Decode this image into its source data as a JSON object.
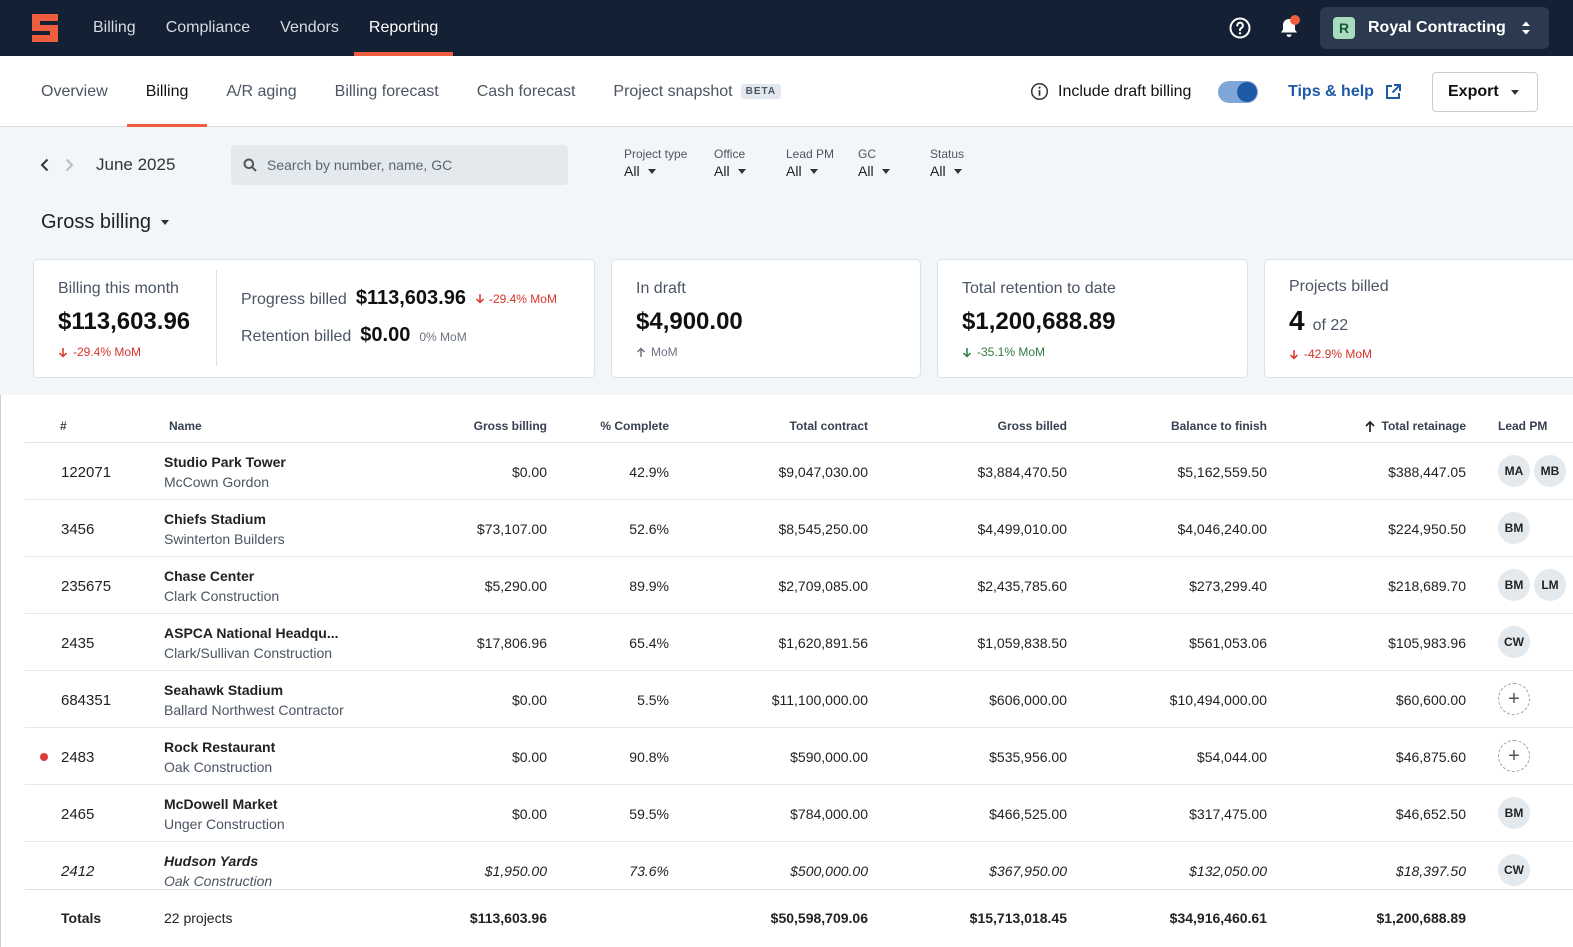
{
  "topnav": {
    "items": [
      "Billing",
      "Compliance",
      "Vendors",
      "Reporting"
    ],
    "active_index": 3,
    "company_initial": "R",
    "company_name": "Royal Contracting",
    "notification_dot": true
  },
  "subnav": {
    "tabs": [
      "Overview",
      "Billing",
      "A/R aging",
      "Billing forecast",
      "Cash forecast",
      "Project snapshot"
    ],
    "active_index": 1,
    "beta_badge": "BETA",
    "draft_toggle_label": "Include draft billing",
    "draft_toggle_on": true,
    "tips_label": "Tips & help",
    "export_label": "Export"
  },
  "filters": {
    "month": "June 2025",
    "search_placeholder": "Search by number, name, GC",
    "items": [
      {
        "label": "Project type",
        "value": "All"
      },
      {
        "label": "Office",
        "value": "All"
      },
      {
        "label": "Lead PM",
        "value": "All"
      },
      {
        "label": "GC",
        "value": "All"
      },
      {
        "label": "Status",
        "value": "All"
      }
    ],
    "metric": "Gross billing"
  },
  "cards": {
    "billing_month": {
      "label": "Billing this month",
      "value": "$113,603.96",
      "delta": "-29.4% MoM",
      "progress_label": "Progress billed",
      "progress_value": "$113,603.96",
      "progress_delta": "-29.4% MoM",
      "retention_label": "Retention billed",
      "retention_value": "$0.00",
      "retention_delta": "0% MoM"
    },
    "in_draft": {
      "label": "In draft",
      "value": "$4,900.00",
      "delta": "MoM"
    },
    "retention": {
      "label": "Total retention to date",
      "value": "$1,200,688.89",
      "delta": "-35.1% MoM"
    },
    "projects": {
      "label": "Projects billed",
      "count": "4",
      "of": "of 22",
      "delta": "-42.9% MoM"
    }
  },
  "table": {
    "headers": {
      "num": "#",
      "name": "Name",
      "gross_billing": "Gross billing",
      "pct_complete": "% Complete",
      "total_contract": "Total contract",
      "gross_billed": "Gross billed",
      "balance": "Balance to finish",
      "retainage": "Total retainage",
      "lead_pm": "Lead PM"
    },
    "sort_column": "Total retainage",
    "rows": [
      {
        "num": "122071",
        "name": "Studio Park Tower",
        "gc": "McCown Gordon",
        "gross_billing": "$0.00",
        "pct": "42.9%",
        "contract": "$9,047,030.00",
        "billed": "$3,884,470.50",
        "balance": "$5,162,559.50",
        "retainage": "$388,447.05",
        "pms": [
          "MA",
          "MB"
        ]
      },
      {
        "num": "3456",
        "name": "Chiefs Stadium",
        "gc": "Swinterton Builders",
        "gross_billing": "$73,107.00",
        "pct": "52.6%",
        "contract": "$8,545,250.00",
        "billed": "$4,499,010.00",
        "balance": "$4,046,240.00",
        "retainage": "$224,950.50",
        "pms": [
          "BM"
        ]
      },
      {
        "num": "235675",
        "name": "Chase Center",
        "gc": "Clark Construction",
        "gross_billing": "$5,290.00",
        "pct": "89.9%",
        "contract": "$2,709,085.00",
        "billed": "$2,435,785.60",
        "balance": "$273,299.40",
        "retainage": "$218,689.70",
        "pms": [
          "BM",
          "LM"
        ]
      },
      {
        "num": "2435",
        "name": "ASPCA National Headqu...",
        "gc": "Clark/Sullivan Construction",
        "gross_billing": "$17,806.96",
        "pct": "65.4%",
        "contract": "$1,620,891.56",
        "billed": "$1,059,838.50",
        "balance": "$561,053.06",
        "retainage": "$105,983.96",
        "pms": [
          "CW"
        ]
      },
      {
        "num": "684351",
        "name": "Seahawk Stadium",
        "gc": "Ballard Northwest Contractor",
        "gross_billing": "$0.00",
        "pct": "5.5%",
        "contract": "$11,100,000.00",
        "billed": "$606,000.00",
        "balance": "$10,494,000.00",
        "retainage": "$60,600.00",
        "pms": []
      },
      {
        "num": "2483",
        "name": "Rock Restaurant",
        "gc": "Oak Construction",
        "gross_billing": "$0.00",
        "pct": "90.8%",
        "contract": "$590,000.00",
        "billed": "$535,956.00",
        "balance": "$54,044.00",
        "retainage": "$46,875.60",
        "pms": [],
        "flag": true
      },
      {
        "num": "2465",
        "name": "McDowell Market",
        "gc": "Unger Construction",
        "gross_billing": "$0.00",
        "pct": "59.5%",
        "contract": "$784,000.00",
        "billed": "$466,525.00",
        "balance": "$317,475.00",
        "retainage": "$46,652.50",
        "pms": [
          "BM"
        ]
      },
      {
        "num": "2412",
        "name": "Hudson Yards",
        "gc": "Oak Construction",
        "gross_billing": "$1,950.00",
        "pct": "73.6%",
        "contract": "$500,000.00",
        "billed": "$367,950.00",
        "balance": "$132,050.00",
        "retainage": "$18,397.50",
        "pms": [
          "CW"
        ],
        "draft": true
      }
    ],
    "totals": {
      "label": "Totals",
      "projects": "22 projects",
      "gross_billing": "$113,603.96",
      "contract": "$50,598,709.06",
      "billed": "$15,713,018.45",
      "balance": "$34,916,460.61",
      "retainage": "$1,200,688.89"
    }
  }
}
